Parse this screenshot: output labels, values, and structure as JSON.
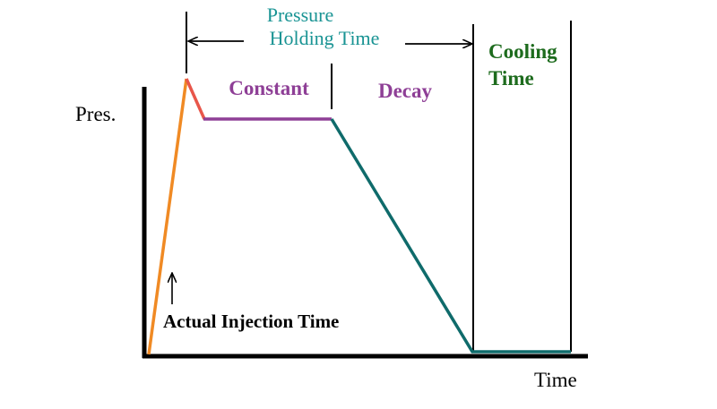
{
  "labels": {
    "y_axis": "Pres.",
    "x_axis": "Time",
    "pressure_holding_line1": "Pressure",
    "pressure_holding_line2": "Holding Time",
    "constant": "Constant",
    "decay": "Decay",
    "cooling_line1": "Cooling",
    "cooling_line2": "Time",
    "injection": "Actual Injection Time"
  },
  "colors": {
    "injection": "#f08a24",
    "peak_drop": "#e8564a",
    "constant": "#8e3f96",
    "decay": "#0f6b6b",
    "pressure_holding_text": "#1a9494",
    "cooling_text": "#1d6b1d",
    "axis": "#000000"
  }
}
